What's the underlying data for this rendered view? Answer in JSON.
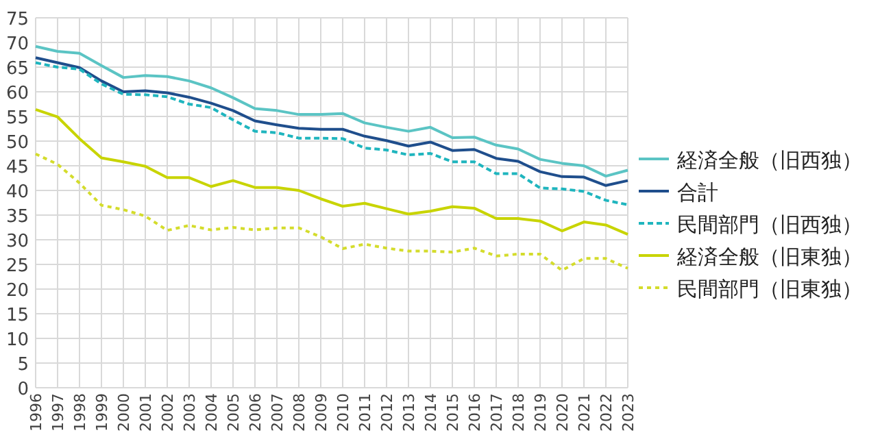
{
  "chart_data": {
    "type": "line",
    "categories": [
      "1996",
      "1997",
      "1998",
      "1999",
      "2000",
      "2001",
      "2002",
      "2003",
      "2004",
      "2005",
      "2006",
      "2007",
      "2008",
      "2009",
      "2010",
      "2011",
      "2012",
      "2013",
      "2014",
      "2015",
      "2016",
      "2017",
      "2018",
      "2019",
      "2020",
      "2021",
      "2022",
      "2023"
    ],
    "ylim": [
      0,
      75
    ],
    "yticks": [
      0,
      5,
      10,
      15,
      20,
      25,
      30,
      35,
      40,
      45,
      50,
      55,
      60,
      65,
      70,
      75
    ],
    "grid": true,
    "legend": "right",
    "marker": "none",
    "series": [
      {
        "name": "経済全般（旧西独）",
        "color": "#5bc4c4",
        "line_style": "solid",
        "values": [
          69.2,
          68.2,
          67.8,
          65.3,
          62.9,
          63.3,
          63.1,
          62.2,
          60.8,
          58.8,
          56.6,
          56.2,
          55.4,
          55.4,
          55.6,
          53.7,
          52.8,
          52.0,
          52.8,
          50.7,
          50.8,
          49.2,
          48.4,
          46.3,
          45.5,
          45.0,
          42.9,
          44.1
        ]
      },
      {
        "name": "合計",
        "color": "#1f4e8c",
        "line_style": "solid",
        "values": [
          66.9,
          65.9,
          64.9,
          62.2,
          60.0,
          60.2,
          59.8,
          58.9,
          57.7,
          56.2,
          54.1,
          53.3,
          52.6,
          52.4,
          52.4,
          51.0,
          50.1,
          49.0,
          49.8,
          48.1,
          48.3,
          46.5,
          45.9,
          43.8,
          42.8,
          42.7,
          41.0,
          42.0
        ]
      },
      {
        "name": "民間部門（旧西独）",
        "color": "#1fb5be",
        "line_style": "dashed",
        "values": [
          65.9,
          65.0,
          64.6,
          61.6,
          59.5,
          59.4,
          59.0,
          57.5,
          56.8,
          54.3,
          52.0,
          51.7,
          50.6,
          50.6,
          50.5,
          48.6,
          48.2,
          47.2,
          47.5,
          45.8,
          45.8,
          43.4,
          43.4,
          40.5,
          40.3,
          39.8,
          38.0,
          37.1
        ]
      },
      {
        "name": "経済全般（旧東独）",
        "color": "#c8d400",
        "line_style": "solid",
        "values": [
          56.4,
          54.9,
          50.5,
          46.6,
          45.8,
          44.9,
          42.6,
          42.6,
          40.8,
          42.0,
          40.6,
          40.6,
          40.0,
          38.3,
          36.8,
          37.4,
          36.3,
          35.2,
          35.8,
          36.7,
          36.4,
          34.3,
          34.3,
          33.8,
          31.8,
          33.6,
          33.0,
          31.1
        ]
      },
      {
        "name": "民間部門（旧東独）",
        "color": "#d4dc2c",
        "line_style": "dotted",
        "values": [
          47.4,
          45.3,
          41.5,
          37.0,
          36.1,
          34.8,
          31.9,
          32.9,
          32.0,
          32.5,
          32.0,
          32.4,
          32.4,
          30.6,
          28.2,
          29.1,
          28.3,
          27.7,
          27.7,
          27.5,
          28.3,
          26.7,
          27.1,
          27.1,
          23.8,
          26.2,
          26.2,
          24.2
        ]
      }
    ]
  }
}
